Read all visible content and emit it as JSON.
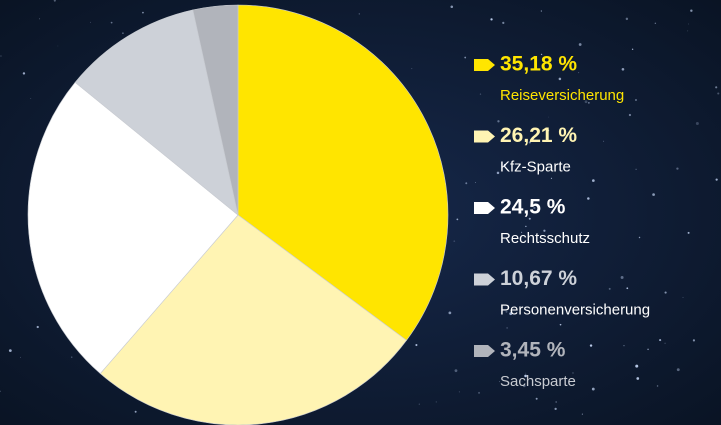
{
  "chart_data": {
    "type": "pie",
    "categories": [
      "Reiseversicherung",
      "Kfz-Sparte",
      "Rechtsschutz",
      "Personenversicherung",
      "Sachsparte"
    ],
    "values": [
      35.18,
      26.21,
      24.5,
      10.67,
      3.45
    ],
    "value_labels": [
      "35,18 %",
      "26,21 %",
      "24,5 %",
      "10,67 %",
      "3,45 %"
    ],
    "colors": [
      "#ffe500",
      "#fff4b3",
      "#ffffff",
      "#cdd1d8",
      "#b1b4bb"
    ]
  }
}
